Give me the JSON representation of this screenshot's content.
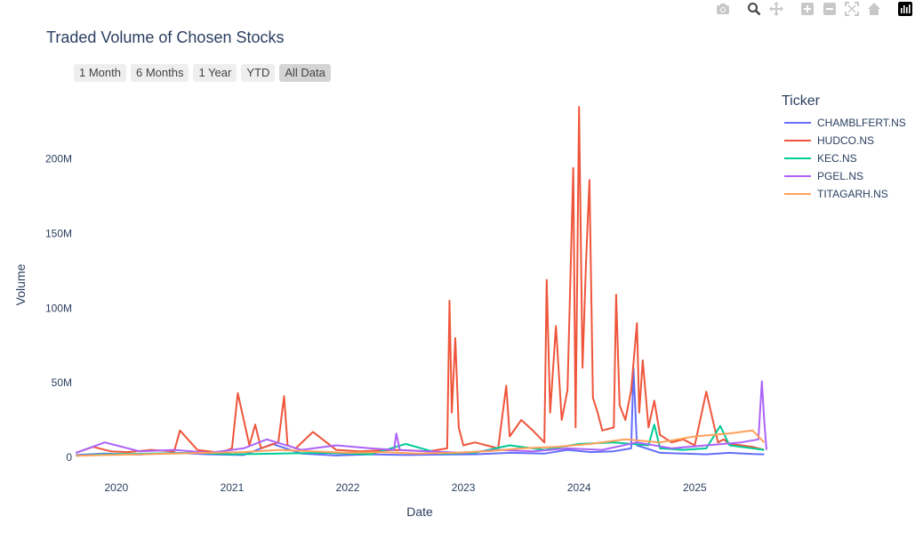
{
  "chart_data": {
    "type": "line",
    "title": "Traded Volume of Chosen Stocks",
    "xlabel": "Date",
    "ylabel": "Volume",
    "x_ticks": [
      "2020",
      "2021",
      "2022",
      "2023",
      "2024",
      "2025"
    ],
    "x_tick_values": [
      2020.0,
      2021.0,
      2022.0,
      2023.0,
      2024.0,
      2025.0
    ],
    "xlim": [
      2019.64,
      2025.62
    ],
    "y_ticks": [
      0,
      50000000,
      100000000,
      150000000,
      200000000
    ],
    "y_tick_labels": [
      "0",
      "50M",
      "100M",
      "150M",
      "200M"
    ],
    "ylim": [
      -6000000,
      241000000
    ],
    "grid": false,
    "legend_title": "Ticker",
    "legend_position": "right",
    "series": [
      {
        "name": "CHAMBLFERT.NS",
        "color": "#636efa",
        "x": [
          2019.65,
          2019.9,
          2020.2,
          2020.5,
          2020.8,
          2021.1,
          2021.35,
          2021.6,
          2021.9,
          2022.2,
          2022.5,
          2022.8,
          2023.1,
          2023.4,
          2023.7,
          2023.9,
          2024.1,
          2024.3,
          2024.45,
          2024.47,
          2024.5,
          2024.7,
          2024.9,
          2025.1,
          2025.3,
          2025.5,
          2025.6
        ],
        "y": [
          1500000,
          2500000,
          1800000,
          3000000,
          2000000,
          1500000,
          9000000,
          2500000,
          1200000,
          2000000,
          1500000,
          1800000,
          2000000,
          3000000,
          2500000,
          5000000,
          3500000,
          4000000,
          6000000,
          60000000,
          8000000,
          3000000,
          2500000,
          2000000,
          3000000,
          2200000,
          2000000
        ]
      },
      {
        "name": "HUDCO.NS",
        "color": "#EF553B",
        "x": [
          2019.65,
          2019.8,
          2019.95,
          2020.1,
          2020.3,
          2020.5,
          2020.55,
          2020.7,
          2020.9,
          2021.0,
          2021.05,
          2021.15,
          2021.2,
          2021.25,
          2021.4,
          2021.45,
          2021.48,
          2021.55,
          2021.7,
          2021.9,
          2022.1,
          2022.4,
          2022.7,
          2022.86,
          2022.88,
          2022.9,
          2022.93,
          2022.96,
          2023.0,
          2023.1,
          2023.3,
          2023.37,
          2023.4,
          2023.5,
          2023.6,
          2023.7,
          2023.72,
          2023.75,
          2023.8,
          2023.85,
          2023.9,
          2023.95,
          2023.97,
          2024.0,
          2024.03,
          2024.06,
          2024.09,
          2024.12,
          2024.16,
          2024.2,
          2024.3,
          2024.32,
          2024.35,
          2024.4,
          2024.45,
          2024.5,
          2024.52,
          2024.55,
          2024.6,
          2024.65,
          2024.7,
          2024.8,
          2024.9,
          2025.0,
          2025.1,
          2025.2,
          2025.25,
          2025.3,
          2025.4,
          2025.5,
          2025.6
        ],
        "y": [
          3000000,
          7000000,
          4000000,
          3500000,
          5000000,
          4000000,
          18000000,
          5000000,
          3000000,
          6000000,
          43000000,
          8000000,
          22000000,
          6000000,
          10000000,
          41000000,
          8000000,
          6000000,
          17000000,
          5000000,
          4000000,
          5000000,
          4000000,
          6000000,
          105000000,
          30000000,
          80000000,
          20000000,
          8000000,
          10000000,
          6000000,
          48000000,
          14000000,
          25000000,
          18000000,
          10000000,
          119000000,
          30000000,
          88000000,
          25000000,
          45000000,
          194000000,
          20000000,
          235000000,
          60000000,
          130000000,
          186000000,
          40000000,
          30000000,
          18000000,
          20000000,
          109000000,
          35000000,
          25000000,
          45000000,
          90000000,
          30000000,
          65000000,
          20000000,
          38000000,
          15000000,
          10000000,
          12000000,
          8000000,
          44000000,
          10000000,
          12000000,
          9000000,
          8000000,
          7000000,
          5000000
        ]
      },
      {
        "name": "KEC.NS",
        "color": "#00cc96",
        "x": [
          2019.65,
          2019.9,
          2020.3,
          2020.7,
          2021.0,
          2021.4,
          2021.8,
          2022.2,
          2022.5,
          2022.8,
          2023.1,
          2023.4,
          2023.7,
          2024.0,
          2024.3,
          2024.6,
          2024.65,
          2024.7,
          2024.9,
          2025.1,
          2025.22,
          2025.3,
          2025.5,
          2025.6
        ],
        "y": [
          1000000,
          2000000,
          2500000,
          3000000,
          2000000,
          2500000,
          3000000,
          2000000,
          9000000,
          2500000,
          3000000,
          8000000,
          5000000,
          9000000,
          10000000,
          8000000,
          22000000,
          6000000,
          5000000,
          6000000,
          21000000,
          8000000,
          6000000,
          5000000
        ]
      },
      {
        "name": "PGEL.NS",
        "color": "#ab63fa",
        "x": [
          2019.65,
          2019.9,
          2020.2,
          2020.5,
          2020.8,
          2021.1,
          2021.3,
          2021.6,
          2021.9,
          2022.2,
          2022.4,
          2022.42,
          2022.45,
          2022.7,
          2023.0,
          2023.3,
          2023.6,
          2023.9,
          2024.2,
          2024.5,
          2024.8,
          2025.1,
          2025.4,
          2025.55,
          2025.58,
          2025.6,
          2025.62
        ],
        "y": [
          3000000,
          10000000,
          4000000,
          5000000,
          3000000,
          6000000,
          12000000,
          5000000,
          8000000,
          6000000,
          5000000,
          16000000,
          5000000,
          4000000,
          3000000,
          5000000,
          4000000,
          6000000,
          5000000,
          10000000,
          6000000,
          8000000,
          10000000,
          12000000,
          51000000,
          25000000,
          5000000
        ]
      },
      {
        "name": "TITAGARH.NS",
        "color": "#FFA15A",
        "x": [
          2019.65,
          2019.9,
          2020.2,
          2020.5,
          2020.8,
          2021.1,
          2021.4,
          2021.7,
          2022.0,
          2022.3,
          2022.6,
          2022.9,
          2023.2,
          2023.5,
          2023.8,
          2024.1,
          2024.4,
          2024.7,
          2025.0,
          2025.3,
          2025.5,
          2025.6
        ],
        "y": [
          1000000,
          1500000,
          2000000,
          2500000,
          3000000,
          3500000,
          5000000,
          4000000,
          3000000,
          3500000,
          2500000,
          3000000,
          4000000,
          6000000,
          7000000,
          9000000,
          12000000,
          10000000,
          14000000,
          16000000,
          18000000,
          10000000
        ]
      }
    ]
  },
  "range_selector": {
    "buttons": [
      "1 Month",
      "6 Months",
      "1 Year",
      "YTD",
      "All Data"
    ],
    "active": "All Data"
  },
  "modebar": {
    "icons": [
      "camera-icon",
      "zoom-icon",
      "pan-icon",
      "zoom-in-icon",
      "zoom-out-icon",
      "autoscale-icon",
      "reset-axes-icon",
      "plotly-logo-icon"
    ]
  }
}
